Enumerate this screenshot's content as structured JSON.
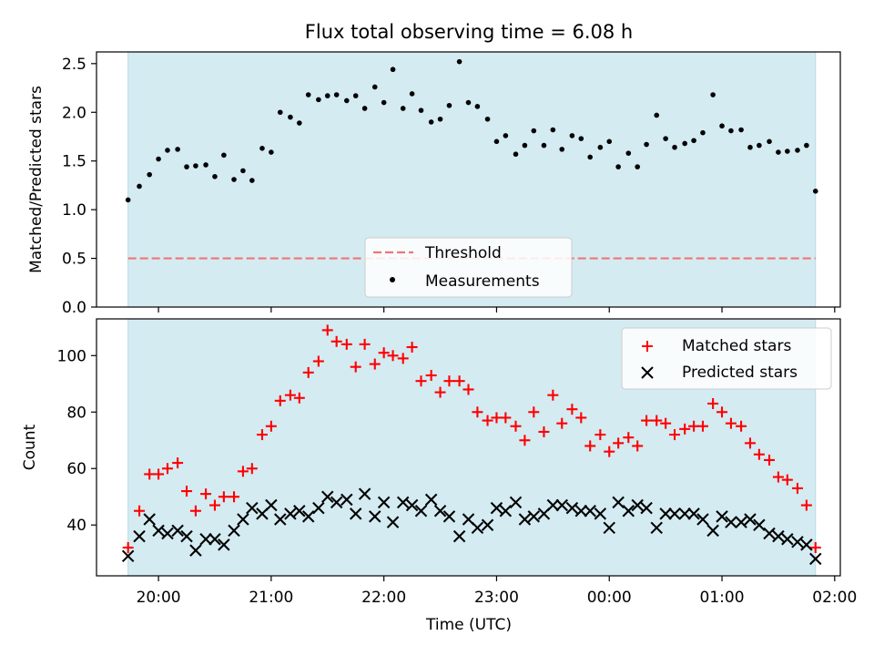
{
  "chart_data": [
    {
      "type": "scatter",
      "title": "Flux total observing time = 6.08 h",
      "xlabel": "",
      "ylabel": "Matched/Predicted stars",
      "ylim": [
        0,
        2.62
      ],
      "yticks": [
        "0.0",
        "0.5",
        "1.0",
        "1.5",
        "2.0",
        "2.5"
      ],
      "xrange_hours": [
        19.45,
        26.05
      ],
      "shaded_interval_hours": [
        19.73,
        25.83
      ],
      "shade_color": "#d4ebf2",
      "threshold": {
        "name": "Threshold",
        "value": 0.5,
        "color": "#f07575"
      },
      "legend": {
        "position": "lower-center",
        "threshold_label": "Threshold",
        "measurements_label": "Measurements"
      },
      "measurements": {
        "name": "Measurements",
        "color": "#000000",
        "x": [
          19.73,
          19.83,
          19.92,
          20.0,
          20.08,
          20.17,
          20.25,
          20.33,
          20.42,
          20.5,
          20.58,
          20.67,
          20.75,
          20.83,
          20.92,
          21.0,
          21.08,
          21.17,
          21.25,
          21.33,
          21.42,
          21.5,
          21.58,
          21.67,
          21.75,
          21.83,
          21.92,
          22.0,
          22.08,
          22.17,
          22.25,
          22.33,
          22.42,
          22.5,
          22.58,
          22.67,
          22.75,
          22.83,
          22.92,
          23.0,
          23.08,
          23.17,
          23.25,
          23.33,
          23.42,
          23.5,
          23.58,
          23.67,
          23.75,
          23.83,
          23.92,
          24.0,
          24.08,
          24.17,
          24.25,
          24.33,
          24.42,
          24.5,
          24.58,
          24.67,
          24.75,
          24.83,
          24.92,
          25.0,
          25.08,
          25.17,
          25.25,
          25.33,
          25.42,
          25.5,
          25.58,
          25.67,
          25.75,
          25.83
        ],
        "y": [
          1.1,
          1.24,
          1.36,
          1.52,
          1.61,
          1.62,
          1.44,
          1.45,
          1.46,
          1.34,
          1.56,
          1.31,
          1.4,
          1.3,
          1.63,
          1.59,
          2.0,
          1.95,
          1.89,
          2.18,
          2.13,
          2.17,
          2.18,
          2.12,
          2.17,
          2.04,
          2.26,
          2.1,
          2.44,
          2.04,
          2.19,
          2.02,
          1.9,
          1.93,
          2.07,
          2.52,
          2.1,
          2.06,
          1.93,
          1.7,
          1.76,
          1.57,
          1.66,
          1.81,
          1.66,
          1.82,
          1.62,
          1.76,
          1.73,
          1.54,
          1.64,
          1.7,
          1.44,
          1.58,
          1.44,
          1.67,
          1.97,
          1.73,
          1.64,
          1.68,
          1.71,
          1.79,
          2.18,
          1.86,
          1.81,
          1.82,
          1.64,
          1.66,
          1.7,
          1.59,
          1.6,
          1.61,
          1.66,
          1.19
        ]
      }
    },
    {
      "type": "scatter",
      "title": "",
      "xlabel": "Time (UTC)",
      "ylabel": "Count",
      "ylim": [
        22,
        113
      ],
      "yticks": [
        "40",
        "60",
        "80",
        "100"
      ],
      "xticks": [
        "20:00",
        "21:00",
        "22:00",
        "23:00",
        "00:00",
        "01:00",
        "02:00"
      ],
      "xtick_hours": [
        20,
        21,
        22,
        23,
        24,
        25,
        26
      ],
      "legend": {
        "position": "top-right"
      },
      "x": [
        19.73,
        19.83,
        19.92,
        20.0,
        20.08,
        20.17,
        20.25,
        20.33,
        20.42,
        20.5,
        20.58,
        20.67,
        20.75,
        20.83,
        20.92,
        21.0,
        21.08,
        21.17,
        21.25,
        21.33,
        21.42,
        21.5,
        21.58,
        21.67,
        21.75,
        21.83,
        21.92,
        22.0,
        22.08,
        22.17,
        22.25,
        22.33,
        22.42,
        22.5,
        22.58,
        22.67,
        22.75,
        22.83,
        22.92,
        23.0,
        23.08,
        23.17,
        23.25,
        23.33,
        23.42,
        23.5,
        23.58,
        23.67,
        23.75,
        23.83,
        23.92,
        24.0,
        24.08,
        24.17,
        24.25,
        24.33,
        24.42,
        24.5,
        24.58,
        24.67,
        24.75,
        24.83,
        24.92,
        25.0,
        25.08,
        25.17,
        25.25,
        25.33,
        25.42,
        25.5,
        25.58,
        25.67,
        25.75,
        25.83
      ],
      "series": [
        {
          "name": "Matched stars",
          "marker": "plus",
          "color": "#ff0000",
          "values": [
            32,
            45,
            58,
            58,
            60,
            62,
            52,
            45,
            51,
            47,
            50,
            50,
            59,
            60,
            72,
            75,
            84,
            86,
            85,
            94,
            98,
            109,
            105,
            104,
            96,
            104,
            97,
            101,
            100,
            99,
            103,
            91,
            93,
            87,
            91,
            91,
            88,
            80,
            77,
            78,
            78,
            75,
            70,
            80,
            73,
            86,
            76,
            81,
            78,
            68,
            72,
            66,
            69,
            71,
            68,
            77,
            77,
            76,
            72,
            74,
            75,
            75,
            83,
            80,
            76,
            75,
            69,
            65,
            63,
            57,
            56,
            53,
            47,
            32
          ]
        },
        {
          "name": "Predicted stars",
          "marker": "x",
          "color": "#000000",
          "values": [
            29,
            36,
            42,
            38,
            37,
            38,
            36,
            31,
            35,
            35,
            33,
            38,
            42,
            46,
            44,
            47,
            42,
            44,
            45,
            43,
            46,
            50,
            48,
            49,
            44,
            51,
            43,
            48,
            41,
            48,
            47,
            45,
            49,
            45,
            43,
            36,
            42,
            39,
            40,
            46,
            45,
            48,
            42,
            43,
            44,
            47,
            47,
            46,
            45,
            45,
            44,
            39,
            48,
            45,
            47,
            46,
            39,
            44,
            44,
            44,
            44,
            42,
            38,
            43,
            41,
            41,
            42,
            40,
            37,
            36,
            35,
            34,
            33,
            28
          ]
        }
      ]
    }
  ]
}
